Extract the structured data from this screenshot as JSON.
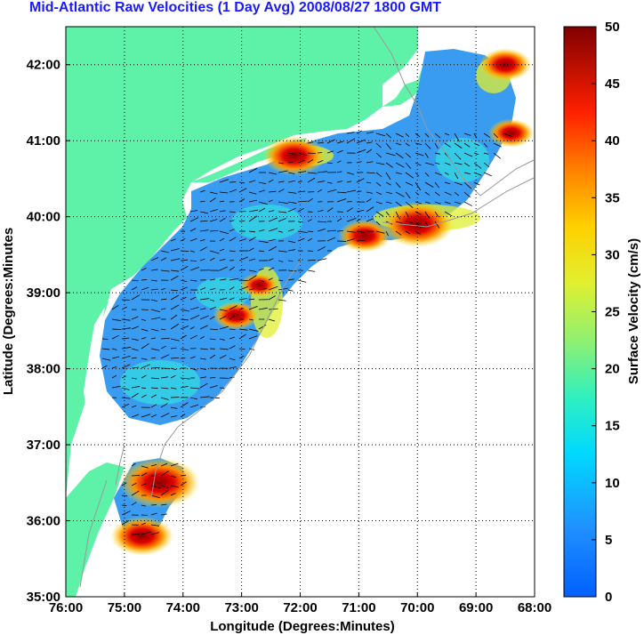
{
  "title": "Mid-Atlantic Raw Velocities (1 Day Avg) 2008/08/27 1800 GMT",
  "xlabel": "Longitude (Degrees:Minutes)",
  "ylabel": "Latitude (Degrees:Minutes",
  "x_ticks": [
    "76:00",
    "75:00",
    "74:00",
    "73:00",
    "72:00",
    "71:00",
    "70:00",
    "69:00",
    "68:00"
  ],
  "y_ticks": [
    "42:00",
    "41:00",
    "40:00",
    "39:00",
    "38:00",
    "37:00",
    "36:00",
    "35:00"
  ],
  "colorbar": {
    "label": "Surface Velocity (cm/s)",
    "ticks": [
      "50",
      "45",
      "40",
      "35",
      "30",
      "25",
      "20",
      "15",
      "10",
      "5",
      "0"
    ],
    "range": [
      0,
      50
    ]
  },
  "colors": {
    "land": "#5ef2a8",
    "water_background": "#ffffff",
    "title": "#1a1aff",
    "vectors": "#000000",
    "bathymetry": "#999999"
  },
  "chart_data": {
    "type": "heatmap",
    "title": "Mid-Atlantic Raw Velocities (1 Day Avg) 2008/08/27 1800 GMT",
    "xlabel": "Longitude (Degrees:Minutes)",
    "ylabel": "Latitude (Degrees:Minutes",
    "xlim": [
      -76,
      -68
    ],
    "ylim": [
      35,
      42.5
    ],
    "colorscale": "jet",
    "color_range": [
      0,
      50
    ],
    "grid": true,
    "hotspots_cm_s": [
      {
        "lon": -70.0,
        "lat": 39.9,
        "speed": 48
      },
      {
        "lon": -70.9,
        "lat": 39.75,
        "speed": 42
      },
      {
        "lon": -72.1,
        "lat": 40.8,
        "speed": 45
      },
      {
        "lon": -74.4,
        "lat": 36.5,
        "speed": 50
      },
      {
        "lon": -72.7,
        "lat": 39.1,
        "speed": 38
      },
      {
        "lon": -73.1,
        "lat": 38.7,
        "speed": 40
      },
      {
        "lon": -68.4,
        "lat": 41.1,
        "speed": 40
      },
      {
        "lon": -68.5,
        "lat": 42.0,
        "speed": 42
      },
      {
        "lon": -74.7,
        "lat": 35.8,
        "speed": 45
      }
    ],
    "background_speed_cm_s": 8
  }
}
